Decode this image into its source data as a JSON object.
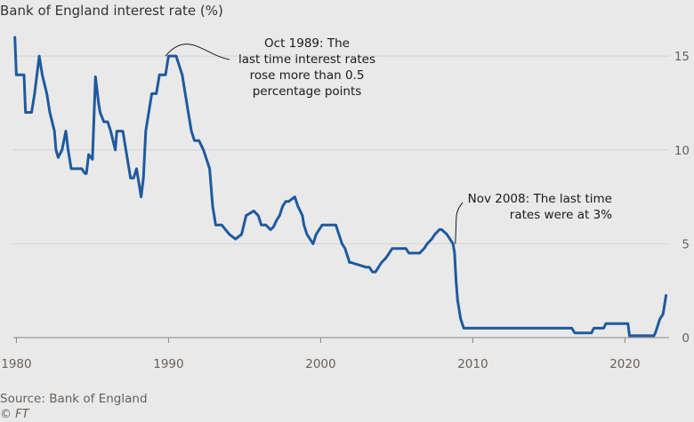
{
  "chart_data": {
    "type": "line",
    "title": "Bank of England interest rate (%)",
    "xlabel": "",
    "ylabel": "",
    "xlim": [
      1979.8,
      2022.9
    ],
    "ylim": [
      0,
      16
    ],
    "x_ticks": [
      "1980",
      "1990",
      "2000",
      "2010",
      "2020"
    ],
    "y_ticks": [
      "0",
      "5",
      "10",
      "15"
    ],
    "y_axis_position": "right",
    "grid": "horizontal",
    "line_color": "#1f5a9e",
    "series": [
      {
        "x": [
          1979.9,
          1980.0,
          1980.25,
          1980.5,
          1980.6,
          1981.0,
          1981.2,
          1981.5,
          1981.7,
          1982.0,
          1982.2,
          1982.5,
          1982.6,
          1982.75,
          1983.0,
          1983.25,
          1983.4,
          1983.5,
          1983.6,
          1983.8,
          1984.0,
          1984.3,
          1984.5,
          1984.6,
          1984.75,
          1985.0,
          1985.2,
          1985.4,
          1985.5,
          1985.75,
          1986.0,
          1986.2,
          1986.5,
          1986.6,
          1986.75,
          1987.0,
          1987.2,
          1987.4,
          1987.5,
          1987.7,
          1987.9,
          1988.1,
          1988.2,
          1988.35,
          1988.5,
          1988.7,
          1988.9,
          1989.2,
          1989.4,
          1989.8,
          1990.0,
          1990.5,
          1990.9,
          1991.1,
          1991.3,
          1991.5,
          1991.7,
          1992.0,
          1992.3,
          1992.7,
          1992.9,
          1993.1,
          1993.5,
          1994.0,
          1994.4,
          1994.8,
          1995.1,
          1995.6,
          1995.9,
          1996.1,
          1996.4,
          1996.7,
          1996.9,
          1997.1,
          1997.3,
          1997.5,
          1997.7,
          1997.9,
          1998.3,
          1998.5,
          1998.8,
          1998.9,
          1999.1,
          1999.3,
          1999.5,
          1999.7,
          1999.9,
          2000.1,
          2001.0,
          2001.2,
          2001.4,
          2001.6,
          2001.8,
          2001.9,
          2002.0,
          2003.0,
          2003.2,
          2003.4,
          2003.6,
          2003.8,
          2004.0,
          2004.3,
          2004.5,
          2004.7,
          2004.9,
          2005.6,
          2005.8,
          2006.5,
          2006.8,
          2007.0,
          2007.3,
          2007.5,
          2007.8,
          2007.95,
          2008.3,
          2008.7,
          2008.8,
          2008.9,
          2009.0,
          2009.2,
          2009.4,
          2016.5,
          2016.7,
          2017.8,
          2017.95,
          2018.6,
          2018.75,
          2020.2,
          2020.3,
          2021.9,
          2022.0,
          2022.1,
          2022.2,
          2022.3,
          2022.5,
          2022.6,
          2022.7
        ],
        "y": [
          16.0,
          14.0,
          14.0,
          14.0,
          12.0,
          12.0,
          13.0,
          15.0,
          14.0,
          13.0,
          12.0,
          11.0,
          10.0,
          9.6,
          10.0,
          11.0,
          10.0,
          9.5,
          9.0,
          9.0,
          9.0,
          9.0,
          8.75,
          8.75,
          9.75,
          9.5,
          13.9,
          12.5,
          12.0,
          11.5,
          11.5,
          11.0,
          10.0,
          11.0,
          11.0,
          11.0,
          10.0,
          9.0,
          8.5,
          8.5,
          9.0,
          8.0,
          7.5,
          8.5,
          11.0,
          12.0,
          13.0,
          13.0,
          14.0,
          14.0,
          15.0,
          15.0,
          14.0,
          13.0,
          12.0,
          11.0,
          10.5,
          10.5,
          10.0,
          9.0,
          7.0,
          6.0,
          6.0,
          5.5,
          5.25,
          5.5,
          6.5,
          6.75,
          6.5,
          6.0,
          6.0,
          5.75,
          5.9,
          6.25,
          6.5,
          7.0,
          7.25,
          7.25,
          7.5,
          7.0,
          6.5,
          6.0,
          5.5,
          5.25,
          5.0,
          5.5,
          5.75,
          6.0,
          6.0,
          5.5,
          5.0,
          4.75,
          4.25,
          4.0,
          4.0,
          3.75,
          3.75,
          3.5,
          3.5,
          3.75,
          4.0,
          4.25,
          4.5,
          4.75,
          4.75,
          4.75,
          4.5,
          4.5,
          4.75,
          5.0,
          5.25,
          5.5,
          5.75,
          5.75,
          5.5,
          5.0,
          4.5,
          3.0,
          2.0,
          1.0,
          0.5,
          0.5,
          0.25,
          0.25,
          0.5,
          0.5,
          0.75,
          0.75,
          0.1,
          0.1,
          0.25,
          0.5,
          0.75,
          1.0,
          1.25,
          1.75,
          2.25
        ]
      }
    ],
    "annotations": [
      {
        "text": [
          "Oct 1989: The",
          "last time interest rates",
          "rose more than 0.5",
          "percentage points"
        ],
        "x": 1989.8,
        "y": 15.0
      },
      {
        "text": [
          "Nov 2008: The last time",
          "rates were at 3%"
        ],
        "x": 2008.85,
        "y": 5.0
      }
    ]
  },
  "footer": {
    "source": "Source: Bank of England",
    "credit": "© FT"
  }
}
